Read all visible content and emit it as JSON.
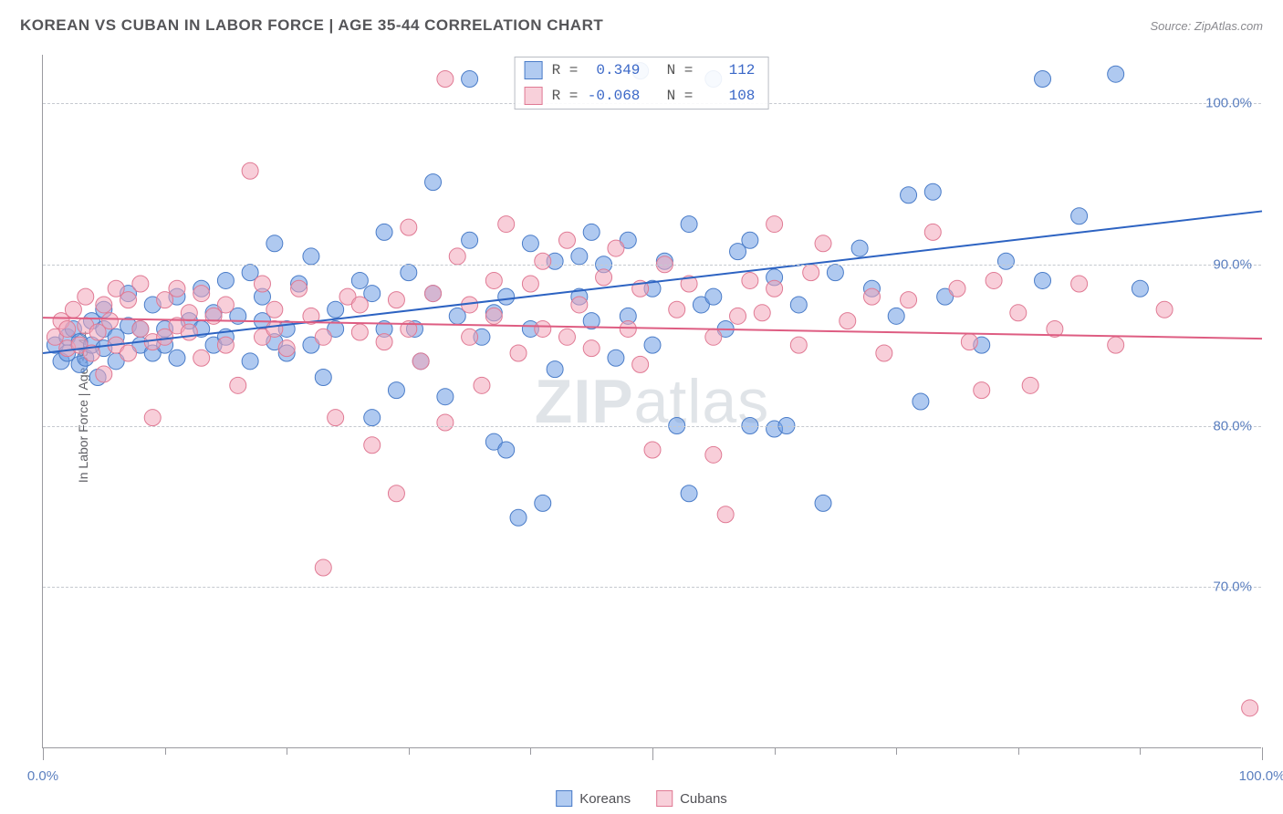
{
  "title": "KOREAN VS CUBAN IN LABOR FORCE | AGE 35-44 CORRELATION CHART",
  "source": "Source: ZipAtlas.com",
  "watermark_bold": "ZIP",
  "watermark_rest": "atlas",
  "ylabel": "In Labor Force | Age 35-44",
  "chart": {
    "type": "scatter",
    "xlim": [
      0,
      100
    ],
    "ylim": [
      60,
      103
    ],
    "x_major_ticks": [
      0,
      50,
      100
    ],
    "x_minor_step": 10,
    "x_labels": {
      "0": "0.0%",
      "100": "100.0%"
    },
    "y_ticks": [
      70,
      80,
      90,
      100
    ],
    "y_labels": {
      "70": "70.0%",
      "80": "80.0%",
      "90": "90.0%",
      "100": "100.0%"
    },
    "grid_color": "#c5c9cf",
    "axis_color": "#9a9aa0",
    "background": "#ffffff",
    "marker_radius": 9,
    "marker_opacity": 0.55,
    "line_width": 2,
    "series": [
      {
        "name": "Koreans",
        "fill_color": "#6d9de4",
        "stroke_color": "#4a7cc8",
        "trend_color": "#2d63c2",
        "R": "0.349",
        "N": "112",
        "trend": {
          "y_at_x0": 84.5,
          "y_at_x100": 93.3
        },
        "points": [
          [
            1,
            85
          ],
          [
            1.5,
            84
          ],
          [
            2,
            85.5
          ],
          [
            2,
            84.5
          ],
          [
            2.5,
            86
          ],
          [
            3,
            85.2
          ],
          [
            3,
            83.8
          ],
          [
            3.5,
            84.2
          ],
          [
            4,
            86.5
          ],
          [
            4,
            85
          ],
          [
            4.5,
            83
          ],
          [
            5,
            86
          ],
          [
            5,
            84.8
          ],
          [
            5,
            87.2
          ],
          [
            6,
            85.5
          ],
          [
            6,
            84
          ],
          [
            7,
            86.2
          ],
          [
            7,
            88.2
          ],
          [
            8,
            85
          ],
          [
            8,
            86
          ],
          [
            9,
            87.5
          ],
          [
            9,
            84.5
          ],
          [
            10,
            86
          ],
          [
            10,
            85
          ],
          [
            11,
            88
          ],
          [
            11,
            84.2
          ],
          [
            12,
            86.5
          ],
          [
            13,
            86
          ],
          [
            13,
            88.5
          ],
          [
            14,
            85
          ],
          [
            14,
            87
          ],
          [
            15,
            85.5
          ],
          [
            15,
            89
          ],
          [
            16,
            86.8
          ],
          [
            17,
            84
          ],
          [
            17,
            89.5
          ],
          [
            18,
            86.5
          ],
          [
            18,
            88
          ],
          [
            19,
            85.2
          ],
          [
            19,
            91.3
          ],
          [
            20,
            86
          ],
          [
            20,
            84.5
          ],
          [
            21,
            88.8
          ],
          [
            22,
            85
          ],
          [
            22,
            90.5
          ],
          [
            23,
            83
          ],
          [
            24,
            87.2
          ],
          [
            24,
            86
          ],
          [
            26,
            89
          ],
          [
            27,
            80.5
          ],
          [
            27,
            88.2
          ],
          [
            28,
            86
          ],
          [
            28,
            92
          ],
          [
            29,
            82.2
          ],
          [
            30,
            89.5
          ],
          [
            30.5,
            86
          ],
          [
            31,
            84
          ],
          [
            32,
            88.2
          ],
          [
            32,
            95.1
          ],
          [
            33,
            81.8
          ],
          [
            34,
            86.8
          ],
          [
            35,
            101.5
          ],
          [
            35,
            91.5
          ],
          [
            36,
            85.5
          ],
          [
            37,
            87
          ],
          [
            37,
            79
          ],
          [
            38,
            78.5
          ],
          [
            38,
            88
          ],
          [
            39,
            74.3
          ],
          [
            40,
            91.3
          ],
          [
            40,
            86
          ],
          [
            41,
            75.2
          ],
          [
            42,
            83.5
          ],
          [
            42,
            90.2
          ],
          [
            44,
            90.5
          ],
          [
            44,
            88
          ],
          [
            45,
            92
          ],
          [
            45,
            86.5
          ],
          [
            46,
            90
          ],
          [
            47,
            84.2
          ],
          [
            48,
            91.5
          ],
          [
            48,
            86.8
          ],
          [
            49,
            102
          ],
          [
            50,
            88.5
          ],
          [
            50,
            85
          ],
          [
            51,
            90.2
          ],
          [
            52,
            80
          ],
          [
            53,
            75.8
          ],
          [
            53,
            92.5
          ],
          [
            54,
            87.5
          ],
          [
            55,
            101.5
          ],
          [
            55,
            88
          ],
          [
            56,
            86
          ],
          [
            57,
            90.8
          ],
          [
            58,
            80
          ],
          [
            58,
            91.5
          ],
          [
            60,
            79.8
          ],
          [
            60,
            89.2
          ],
          [
            61,
            80
          ],
          [
            62,
            87.5
          ],
          [
            64,
            75.2
          ],
          [
            65,
            89.5
          ],
          [
            67,
            91
          ],
          [
            68,
            88.5
          ],
          [
            70,
            86.8
          ],
          [
            71,
            94.3
          ],
          [
            72,
            81.5
          ],
          [
            73,
            94.5
          ],
          [
            74,
            88
          ],
          [
            77,
            85
          ],
          [
            79,
            90.2
          ],
          [
            82,
            101.5
          ],
          [
            82,
            89
          ],
          [
            85,
            93
          ],
          [
            88,
            101.8
          ],
          [
            90,
            88.5
          ]
        ]
      },
      {
        "name": "Cubans",
        "fill_color": "#f2a6ba",
        "stroke_color": "#e07a94",
        "trend_color": "#de5d82",
        "R": "-0.068",
        "N": "108",
        "trend": {
          "y_at_x0": 86.7,
          "y_at_x100": 85.4
        },
        "points": [
          [
            1,
            85.5
          ],
          [
            1.5,
            86.5
          ],
          [
            2,
            84.8
          ],
          [
            2,
            86
          ],
          [
            2.5,
            87.2
          ],
          [
            3,
            85
          ],
          [
            3.5,
            86.2
          ],
          [
            3.5,
            88
          ],
          [
            4,
            84.5
          ],
          [
            4.5,
            85.8
          ],
          [
            5,
            87.5
          ],
          [
            5,
            83.2
          ],
          [
            5.5,
            86.5
          ],
          [
            6,
            85
          ],
          [
            6,
            88.5
          ],
          [
            7,
            87.8
          ],
          [
            7,
            84.5
          ],
          [
            8,
            86
          ],
          [
            8,
            88.8
          ],
          [
            9,
            85.2
          ],
          [
            9,
            80.5
          ],
          [
            10,
            87.8
          ],
          [
            10,
            85.5
          ],
          [
            11,
            86.2
          ],
          [
            11,
            88.5
          ],
          [
            12,
            85.8
          ],
          [
            12,
            87
          ],
          [
            13,
            88.2
          ],
          [
            13,
            84.2
          ],
          [
            14,
            86.8
          ],
          [
            15,
            87.5
          ],
          [
            15,
            85
          ],
          [
            16,
            82.5
          ],
          [
            17,
            95.8
          ],
          [
            18,
            85.5
          ],
          [
            18,
            88.8
          ],
          [
            19,
            87.2
          ],
          [
            19,
            86
          ],
          [
            20,
            84.8
          ],
          [
            21,
            88.5
          ],
          [
            22,
            86.8
          ],
          [
            23,
            85.5
          ],
          [
            23,
            71.2
          ],
          [
            24,
            80.5
          ],
          [
            25,
            88
          ],
          [
            26,
            85.8
          ],
          [
            26,
            87.5
          ],
          [
            27,
            78.8
          ],
          [
            28,
            85.2
          ],
          [
            29,
            75.8
          ],
          [
            29,
            87.8
          ],
          [
            30,
            86
          ],
          [
            30,
            92.3
          ],
          [
            31,
            84
          ],
          [
            32,
            88.2
          ],
          [
            33,
            101.5
          ],
          [
            33,
            80.2
          ],
          [
            34,
            90.5
          ],
          [
            35,
            87.5
          ],
          [
            35,
            85.5
          ],
          [
            36,
            82.5
          ],
          [
            37,
            89
          ],
          [
            37,
            86.8
          ],
          [
            38,
            92.5
          ],
          [
            39,
            84.5
          ],
          [
            40,
            88.8
          ],
          [
            41,
            90.2
          ],
          [
            41,
            86
          ],
          [
            43,
            85.5
          ],
          [
            43,
            91.5
          ],
          [
            44,
            87.5
          ],
          [
            45,
            84.8
          ],
          [
            46,
            89.2
          ],
          [
            47,
            91
          ],
          [
            48,
            86
          ],
          [
            49,
            88.5
          ],
          [
            49,
            83.8
          ],
          [
            50,
            78.5
          ],
          [
            51,
            90
          ],
          [
            52,
            87.2
          ],
          [
            53,
            88.8
          ],
          [
            55,
            78.2
          ],
          [
            55,
            85.5
          ],
          [
            56,
            74.5
          ],
          [
            57,
            86.8
          ],
          [
            58,
            89
          ],
          [
            59,
            87
          ],
          [
            60,
            88.5
          ],
          [
            60,
            92.5
          ],
          [
            62,
            85
          ],
          [
            63,
            89.5
          ],
          [
            64,
            91.3
          ],
          [
            66,
            86.5
          ],
          [
            68,
            88
          ],
          [
            69,
            84.5
          ],
          [
            71,
            87.8
          ],
          [
            73,
            92
          ],
          [
            75,
            88.5
          ],
          [
            76,
            85.2
          ],
          [
            77,
            82.2
          ],
          [
            78,
            89
          ],
          [
            80,
            87
          ],
          [
            81,
            82.5
          ],
          [
            83,
            86
          ],
          [
            85,
            88.8
          ],
          [
            88,
            85
          ],
          [
            92,
            87.2
          ],
          [
            99,
            62.5
          ]
        ]
      }
    ],
    "legend_bottom": [
      {
        "label": "Koreans",
        "series_idx": 0
      },
      {
        "label": "Cubans",
        "series_idx": 1
      }
    ]
  }
}
